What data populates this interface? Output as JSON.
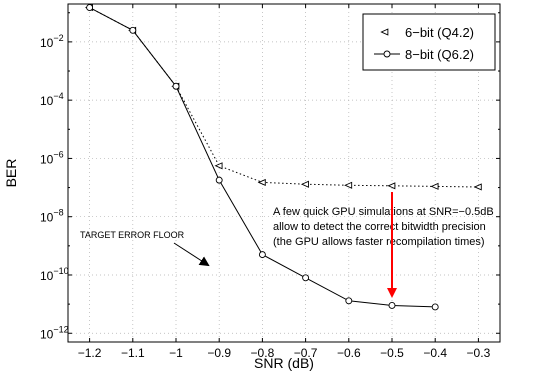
{
  "chart_data": {
    "type": "line",
    "xlabel": "SNR (dB)",
    "ylabel": "BER",
    "xlim": [
      -1.25,
      -0.25
    ],
    "ylim_log10": [
      -12.3,
      -0.7
    ],
    "y_scale": "log",
    "grid": true,
    "legend_position": "top-right",
    "x_ticks": [
      "−1.2",
      "−1.1",
      "−1",
      "−0.9",
      "−0.8",
      "−0.7",
      "−0.6",
      "−0.5",
      "−0.4",
      "−0.3"
    ],
    "y_ticks": [
      {
        "base": "10",
        "exp": "−2"
      },
      {
        "base": "10",
        "exp": "−4"
      },
      {
        "base": "10",
        "exp": "−6"
      },
      {
        "base": "10",
        "exp": "−8"
      },
      {
        "base": "10",
        "exp": "−10"
      },
      {
        "base": "10",
        "exp": "−12"
      }
    ],
    "series": [
      {
        "name": "6−bit (Q4.2)",
        "marker": "triangle-left",
        "line_style": "dotted",
        "x": [
          -1.2,
          -1.1,
          -1.0,
          -0.9,
          -0.8,
          -0.7,
          -0.6,
          -0.5,
          -0.4,
          -0.3
        ],
        "y": [
          0.15,
          0.025,
          0.0003,
          5.6e-07,
          1.5e-07,
          1.3e-07,
          1.2e-07,
          1.15e-07,
          1.1e-07,
          1.05e-07
        ]
      },
      {
        "name": "8−bit (Q6.2)",
        "marker": "circle",
        "line_style": "solid",
        "x": [
          -1.2,
          -1.1,
          -1.0,
          -0.9,
          -0.8,
          -0.7,
          -0.6,
          -0.5,
          -0.4
        ],
        "y": [
          0.15,
          0.025,
          0.0003,
          1.8e-07,
          5e-10,
          8e-11,
          1.3e-11,
          9e-12,
          8e-12
        ]
      }
    ],
    "annotations": {
      "target": "TARGET ERROR FLOOR",
      "note_lines": [
        "A few quick GPU simulations at SNR=−0.5dB",
        "allow to detect the correct bitwidth precision",
        "(the GPU allows faster recompilation times)"
      ],
      "note_arrow_x": -0.5
    },
    "colors": {
      "axes": "#000000",
      "grid": "#b0b0b0",
      "series_6bit": "#000000",
      "series_8bit": "#000000",
      "note_arrow": "#ff0000"
    }
  }
}
